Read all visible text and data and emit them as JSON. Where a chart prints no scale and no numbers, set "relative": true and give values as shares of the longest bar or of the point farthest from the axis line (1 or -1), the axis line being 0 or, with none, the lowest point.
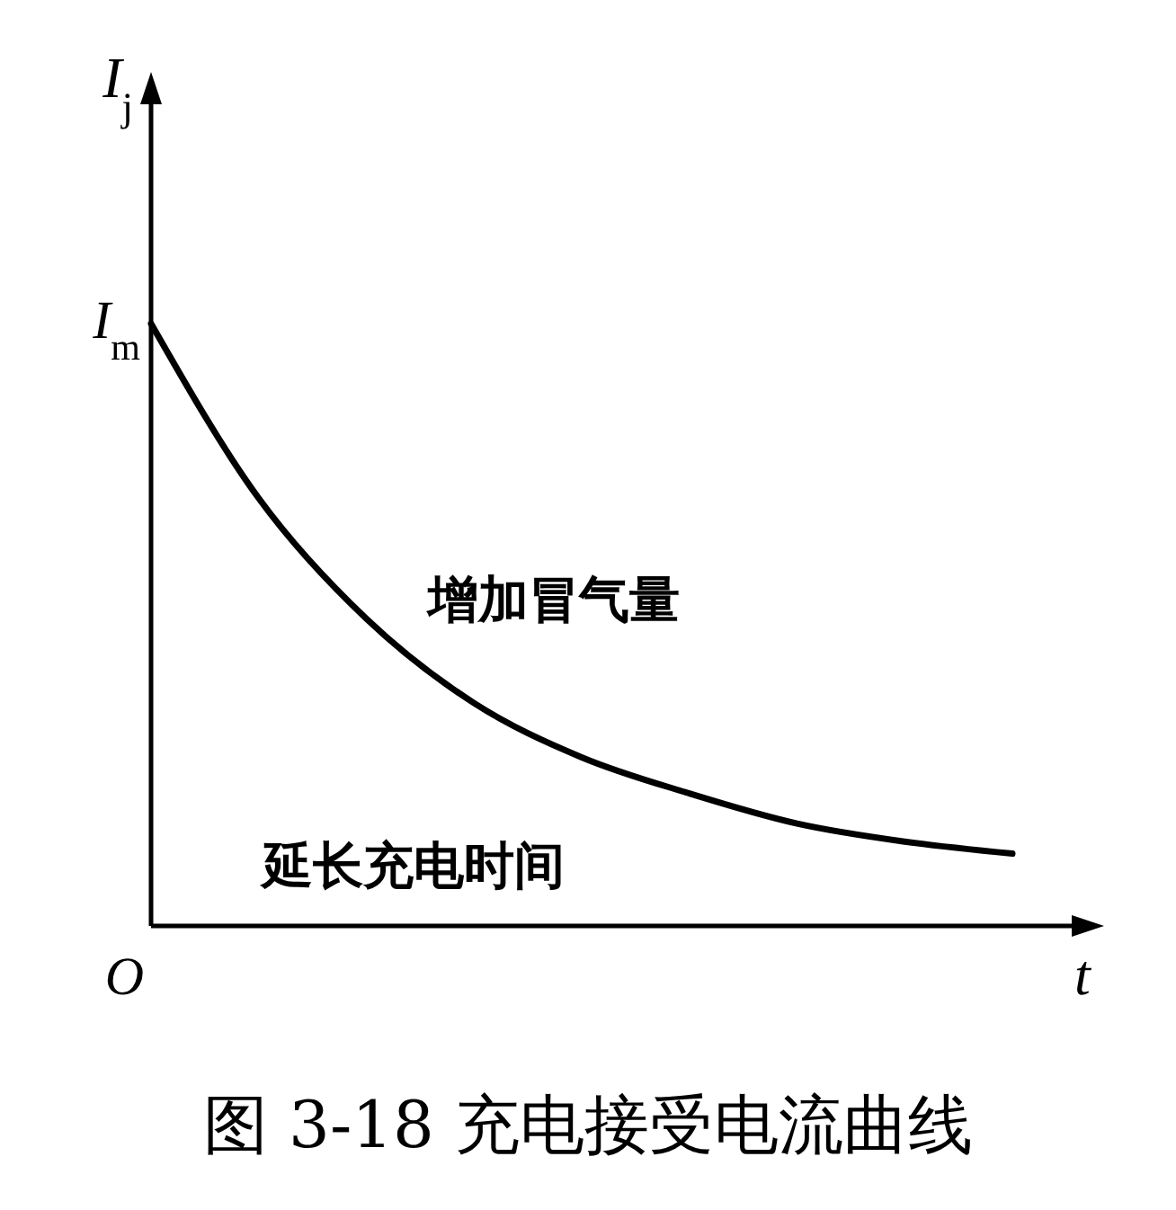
{
  "chart_data": {
    "type": "line",
    "title": "图 3-18    充电接受电流曲线",
    "xlabel": "t",
    "ylabel": "I$_{j}$",
    "relative": true,
    "color": "#000000",
    "categories": [
      null,
      null,
      null,
      null,
      null,
      null,
      null,
      null,
      null
    ],
    "values": [
      1,
      0.71,
      0.51,
      0.37,
      0.28,
      0.22,
      0.17,
      0.14,
      0.12
    ],
    "annotations": [
      "I$_{m}$",
      "O",
      "增加冒气量",
      "延长充电时间"
    ]
  }
}
